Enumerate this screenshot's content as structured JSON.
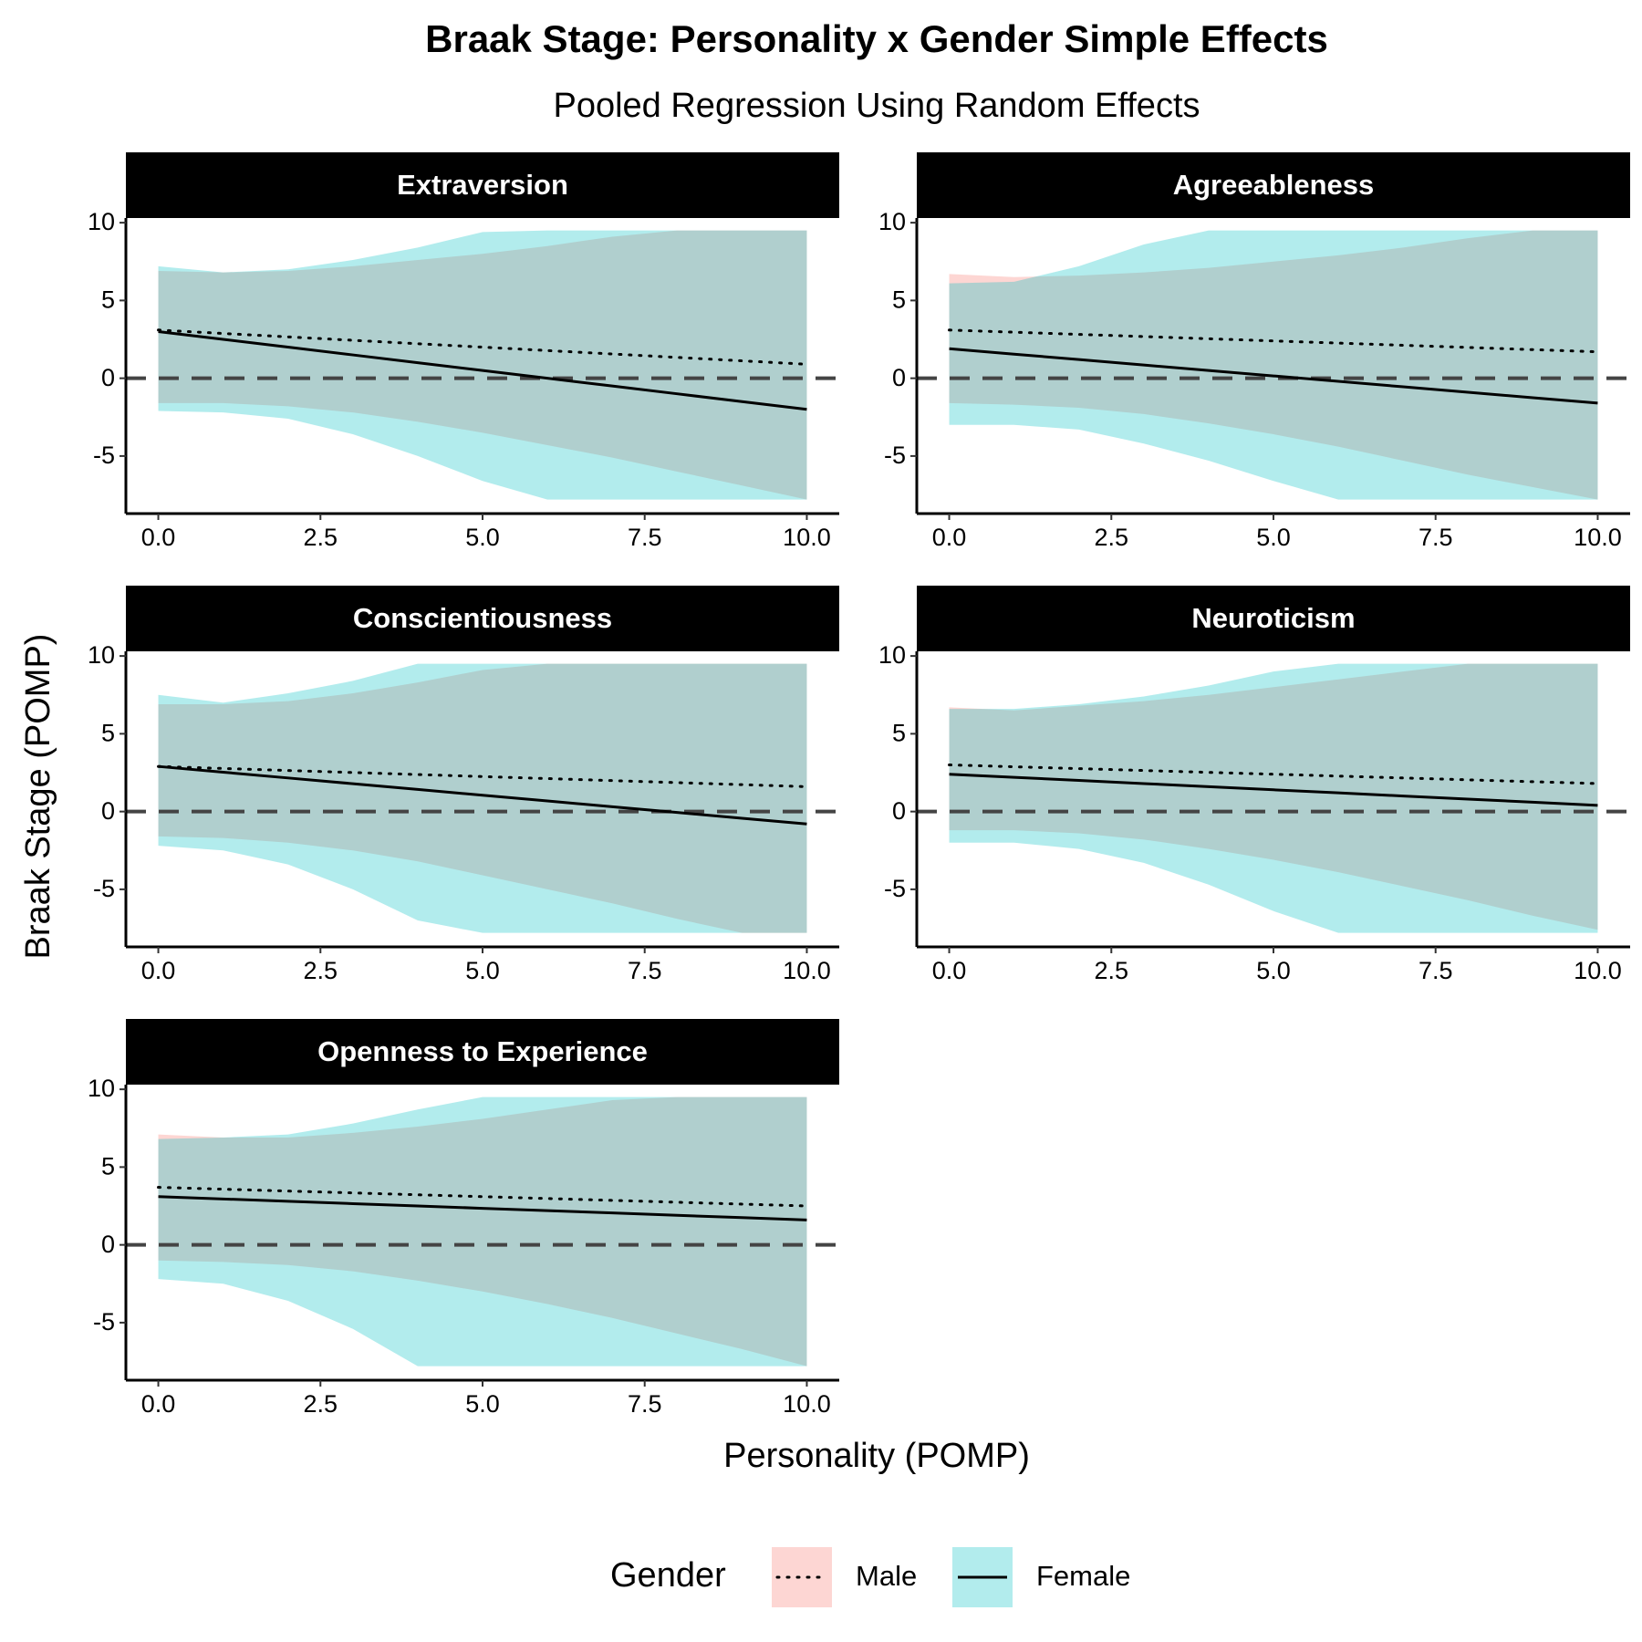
{
  "chart_data": {
    "type": "line",
    "title": "Braak Stage: Personality x Gender Simple Effects",
    "subtitle": "Pooled Regression Using Random Effects",
    "x_label": "Personality (POMP)",
    "y_label": "Braak Stage (POMP)",
    "legend_title": "Gender",
    "groups": [
      {
        "name": "Male",
        "color": "#F8766D",
        "linestyle": "dotted"
      },
      {
        "name": "Female",
        "color": "#00BFC4",
        "linestyle": "solid"
      }
    ],
    "hline": 0,
    "xlim": [
      -0.5,
      10.5
    ],
    "ylim": [
      -8.7,
      10.3
    ],
    "xticks": [
      {
        "value": 0,
        "label": "0.0"
      },
      {
        "value": 2.5,
        "label": "2.5"
      },
      {
        "value": 5,
        "label": "5.0"
      },
      {
        "value": 7.5,
        "label": "7.5"
      },
      {
        "value": 10,
        "label": "10.0"
      }
    ],
    "yticks": [
      -5,
      0,
      5,
      10
    ],
    "x": [
      0,
      1,
      2,
      3,
      4,
      5,
      6,
      7,
      8,
      9,
      10
    ],
    "panels": [
      {
        "title": "Extraversion",
        "series": [
          {
            "values": [
              3.1,
              2.88,
              2.66,
              2.44,
              2.22,
              2.0,
              1.78,
              1.56,
              1.34,
              1.12,
              0.9
            ],
            "lower": [
              -1.6,
              -1.6,
              -1.8,
              -2.2,
              -2.8,
              -3.5,
              -4.3,
              -5.1,
              -6.0,
              -6.9,
              -7.8
            ],
            "upper": [
              6.9,
              6.8,
              6.9,
              7.2,
              7.6,
              8.0,
              8.5,
              9.1,
              9.5,
              9.5,
              9.5
            ]
          },
          {
            "values": [
              3.0,
              2.5,
              2.0,
              1.5,
              1.0,
              0.5,
              0.0,
              -0.5,
              -1.0,
              -1.5,
              -2.0
            ],
            "lower": [
              -2.1,
              -2.2,
              -2.6,
              -3.6,
              -5.0,
              -6.6,
              -7.8,
              -7.8,
              -7.8,
              -7.8,
              -7.8
            ],
            "upper": [
              7.2,
              6.8,
              7.0,
              7.6,
              8.4,
              9.4,
              9.5,
              9.5,
              9.5,
              9.5,
              9.5
            ]
          }
        ]
      },
      {
        "title": "Agreeableness",
        "series": [
          {
            "values": [
              3.1,
              2.96,
              2.82,
              2.68,
              2.54,
              2.4,
              2.26,
              2.12,
              1.98,
              1.84,
              1.7
            ],
            "lower": [
              -1.6,
              -1.7,
              -1.9,
              -2.3,
              -2.9,
              -3.6,
              -4.4,
              -5.3,
              -6.2,
              -7.0,
              -7.8
            ],
            "upper": [
              6.7,
              6.5,
              6.6,
              6.8,
              7.1,
              7.5,
              7.9,
              8.4,
              9.0,
              9.5,
              9.5
            ]
          },
          {
            "values": [
              1.9,
              1.55,
              1.2,
              0.85,
              0.5,
              0.15,
              -0.2,
              -0.55,
              -0.9,
              -1.25,
              -1.6
            ],
            "lower": [
              -3.0,
              -3.0,
              -3.3,
              -4.2,
              -5.3,
              -6.6,
              -7.8,
              -7.8,
              -7.8,
              -7.8,
              -7.8
            ],
            "upper": [
              6.1,
              6.2,
              7.2,
              8.6,
              9.5,
              9.5,
              9.5,
              9.5,
              9.5,
              9.5,
              9.5
            ]
          }
        ]
      },
      {
        "title": "Conscientiousness",
        "series": [
          {
            "values": [
              2.9,
              2.77,
              2.64,
              2.51,
              2.38,
              2.25,
              2.12,
              1.99,
              1.86,
              1.73,
              1.6
            ],
            "lower": [
              -1.6,
              -1.7,
              -2.0,
              -2.5,
              -3.2,
              -4.1,
              -5.0,
              -5.9,
              -6.9,
              -7.8,
              -7.8
            ],
            "upper": [
              6.9,
              6.9,
              7.1,
              7.6,
              8.3,
              9.1,
              9.5,
              9.5,
              9.5,
              9.5,
              9.5
            ]
          },
          {
            "values": [
              2.9,
              2.53,
              2.16,
              1.79,
              1.42,
              1.05,
              0.68,
              0.31,
              -0.06,
              -0.43,
              -0.8
            ],
            "lower": [
              -2.2,
              -2.5,
              -3.4,
              -5.0,
              -7.0,
              -7.8,
              -7.8,
              -7.8,
              -7.8,
              -7.8,
              -7.8
            ],
            "upper": [
              7.5,
              7.0,
              7.6,
              8.4,
              9.5,
              9.5,
              9.5,
              9.5,
              9.5,
              9.5,
              9.5
            ]
          }
        ]
      },
      {
        "title": "Neuroticism",
        "series": [
          {
            "values": [
              3.0,
              2.88,
              2.76,
              2.64,
              2.52,
              2.4,
              2.28,
              2.16,
              2.04,
              1.92,
              1.8
            ],
            "lower": [
              -1.2,
              -1.2,
              -1.4,
              -1.8,
              -2.4,
              -3.1,
              -3.9,
              -4.8,
              -5.7,
              -6.7,
              -7.6
            ],
            "upper": [
              6.7,
              6.5,
              6.8,
              7.1,
              7.5,
              8.0,
              8.5,
              9.0,
              9.5,
              9.5,
              9.5
            ]
          },
          {
            "values": [
              2.4,
              2.2,
              2.0,
              1.8,
              1.6,
              1.4,
              1.2,
              1.0,
              0.8,
              0.6,
              0.4
            ],
            "lower": [
              -2.0,
              -2.0,
              -2.4,
              -3.3,
              -4.7,
              -6.4,
              -7.8,
              -7.8,
              -7.8,
              -7.8,
              -7.8
            ],
            "upper": [
              6.6,
              6.6,
              6.9,
              7.4,
              8.1,
              9.0,
              9.5,
              9.5,
              9.5,
              9.5,
              9.5
            ]
          }
        ]
      },
      {
        "title": "Openness to Experience",
        "series": [
          {
            "values": [
              3.7,
              3.58,
              3.46,
              3.34,
              3.22,
              3.1,
              2.98,
              2.86,
              2.74,
              2.62,
              2.5
            ],
            "lower": [
              -1.0,
              -1.1,
              -1.3,
              -1.7,
              -2.3,
              -3.0,
              -3.8,
              -4.7,
              -5.7,
              -6.7,
              -7.8
            ],
            "upper": [
              7.1,
              6.9,
              6.9,
              7.2,
              7.6,
              8.1,
              8.7,
              9.3,
              9.5,
              9.5,
              9.5
            ]
          },
          {
            "values": [
              3.1,
              2.95,
              2.8,
              2.65,
              2.5,
              2.35,
              2.2,
              2.05,
              1.9,
              1.75,
              1.6
            ],
            "lower": [
              -2.2,
              -2.5,
              -3.6,
              -5.4,
              -7.8,
              -7.8,
              -7.8,
              -7.8,
              -7.8,
              -7.8,
              -7.8
            ],
            "upper": [
              6.8,
              6.9,
              7.1,
              7.8,
              8.7,
              9.5,
              9.5,
              9.5,
              9.5,
              9.5,
              9.5
            ]
          }
        ]
      }
    ]
  }
}
